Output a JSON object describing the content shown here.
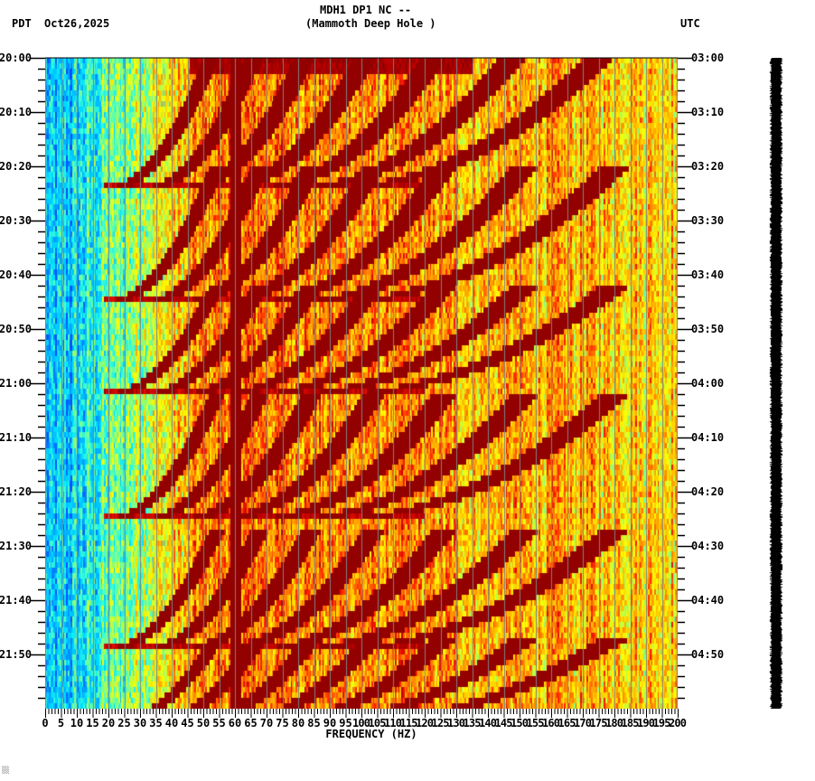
{
  "header": {
    "station_line": "MDH1 DP1 NC --",
    "location_line": "(Mammoth Deep Hole )",
    "left_timezone": "PDT",
    "date": "Oct26,2025",
    "right_timezone": "UTC"
  },
  "footer": {
    "corner_mark": "░░"
  },
  "colors": {
    "background": "#ffffff",
    "grid_line": "#808080",
    "axis": "#000000",
    "colormap": [
      "#0050ff",
      "#00a8ff",
      "#00e0ff",
      "#40ffd0",
      "#a0ff60",
      "#ffff00",
      "#ffc000",
      "#ff8000",
      "#ff2000",
      "#c00000",
      "#800000"
    ]
  },
  "chart_data": {
    "type": "heatmap",
    "title": "MDH1 DP1 NC -- (Mammoth Deep Hole )",
    "subtitle": "Oct26,2025",
    "xlabel": "FREQUENCY (HZ)",
    "ylabel_left": "PDT",
    "ylabel_right": "UTC",
    "xlim": [
      0,
      200
    ],
    "x_ticks": [
      0,
      5,
      10,
      15,
      20,
      25,
      30,
      35,
      40,
      45,
      50,
      55,
      60,
      65,
      70,
      75,
      80,
      85,
      90,
      95,
      100,
      105,
      110,
      115,
      120,
      125,
      130,
      135,
      140,
      145,
      150,
      155,
      160,
      165,
      170,
      175,
      180,
      185,
      190,
      195,
      200
    ],
    "x_minor_tick_step": 1,
    "y_ticks_left": [
      "20:00",
      "20:10",
      "20:20",
      "20:30",
      "20:40",
      "20:50",
      "21:00",
      "21:10",
      "21:20",
      "21:30",
      "21:40",
      "21:50"
    ],
    "y_ticks_right": [
      "03:00",
      "03:10",
      "03:20",
      "03:30",
      "03:40",
      "03:50",
      "04:00",
      "04:10",
      "04:20",
      "04:30",
      "04:40",
      "04:50"
    ],
    "y_minor_tick_minutes": 2,
    "duration_minutes": 120,
    "grid": {
      "vertical_every_hz": 5
    },
    "features": {
      "persistent_line_hz": 60,
      "low_freq_quiet_band_hz": [
        0,
        30
      ],
      "high_freq_level": "yellow-orange noise above ~130 Hz",
      "sweep_episodes_start_minutes": [
        -3,
        20,
        42,
        62,
        87,
        107
      ],
      "sweep_episode_end_minutes": [
        24,
        45,
        62,
        85,
        109,
        123
      ],
      "sweep_harmonics": 7,
      "sweep_base_start_hz": 20,
      "sweep_base_end_hz": 54
    },
    "colorbar": "amplitude trace (black) on right"
  }
}
